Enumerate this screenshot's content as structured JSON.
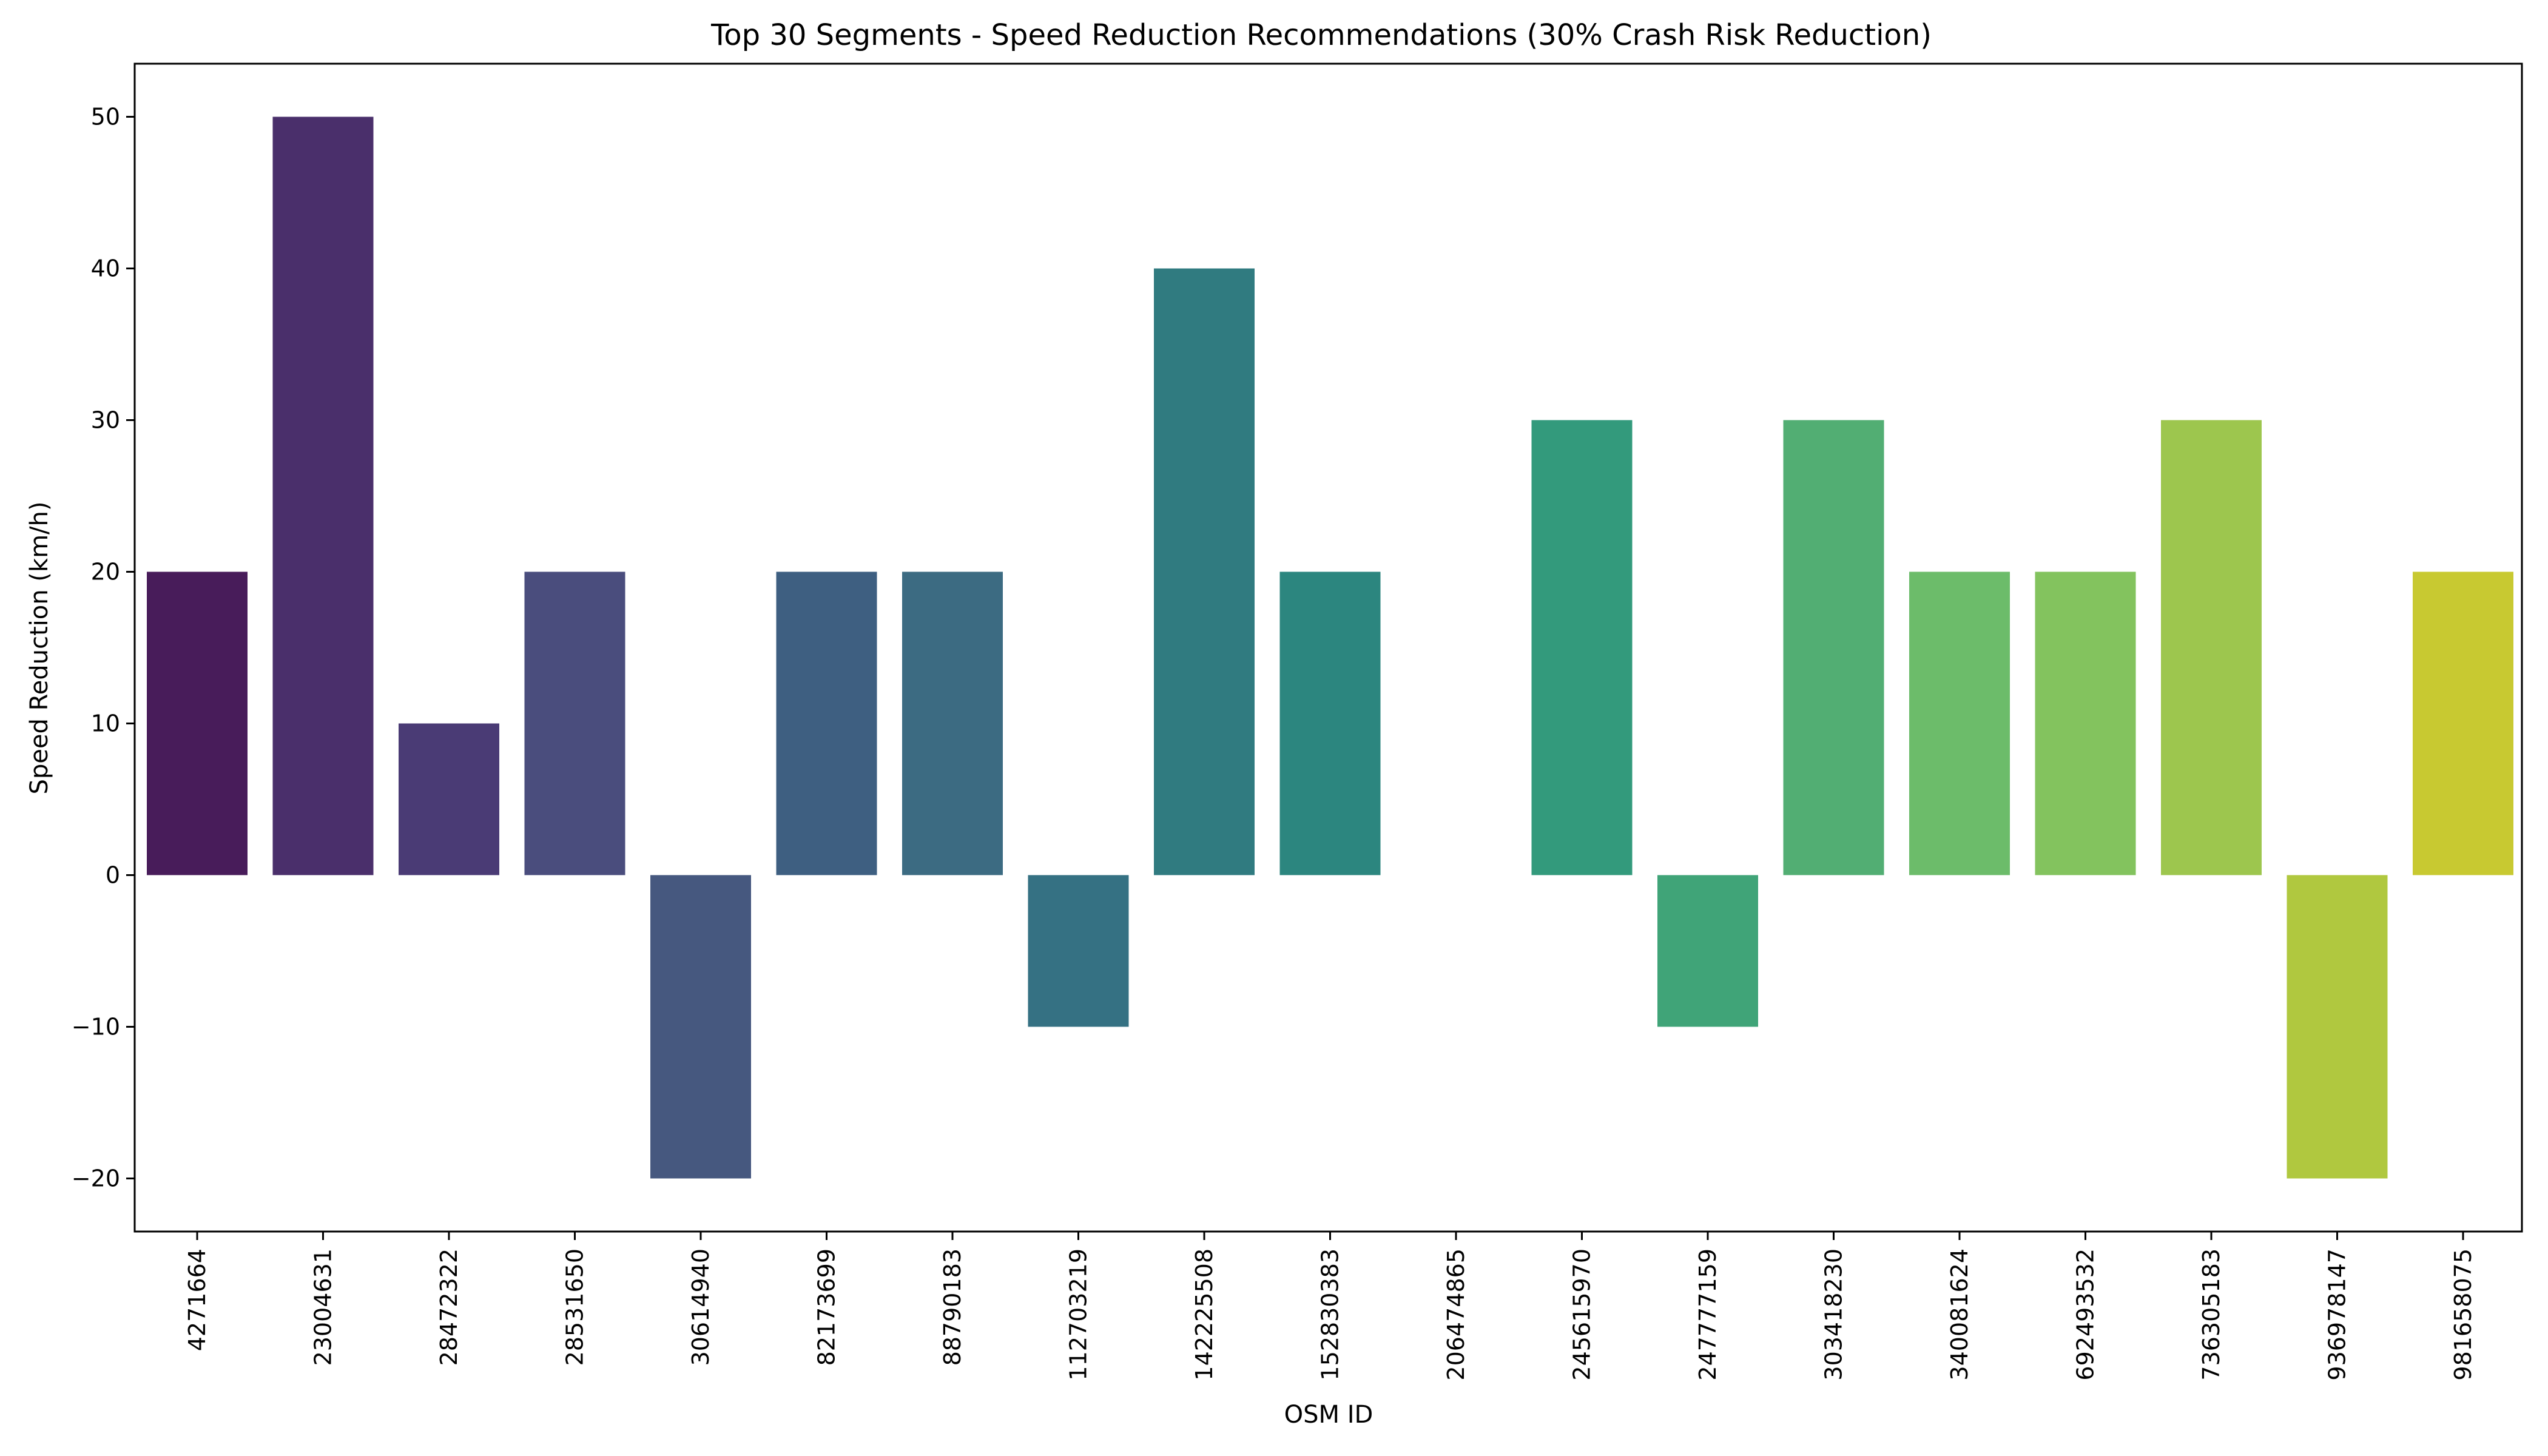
{
  "chart_data": {
    "type": "bar",
    "title": "Top 30 Segments - Speed Reduction Recommendations (30% Crash Risk Reduction)",
    "xlabel": "OSM ID",
    "ylabel": "Speed Reduction (km/h)",
    "ylim": [
      -23.5,
      53.5
    ],
    "yticks": [
      50,
      40,
      30,
      20,
      10,
      0,
      -10,
      -20
    ],
    "ytick_labels": [
      "50",
      "40",
      "30",
      "20",
      "10",
      "0",
      "−10",
      "−20"
    ],
    "grid": false,
    "legend": "none",
    "categories": [
      "4271664",
      "23004631",
      "28472322",
      "28531650",
      "30614940",
      "82173699",
      "88790183",
      "112703219",
      "142225508",
      "152830383",
      "206474865",
      "245615970",
      "247777159",
      "303418230",
      "340081624",
      "692493532",
      "736305183",
      "936978147",
      "981658075"
    ],
    "values": [
      20,
      50,
      10,
      20,
      -20,
      20,
      20,
      -10,
      40,
      20,
      0,
      30,
      -10,
      30,
      20,
      20,
      30,
      -20,
      20
    ],
    "colors": [
      "#481c5a",
      "#4a2f6b",
      "#4a3b75",
      "#4a4d7d",
      "#46587f",
      "#3e5f81",
      "#3c6b82",
      "#357183",
      "#307b80",
      "#2c867f",
      "#2a917f",
      "#339a7c",
      "#40a478",
      "#52ae73",
      "#6cbc6a",
      "#83c35e",
      "#9dc64e",
      "#b0c83f",
      "#c8c931"
    ]
  }
}
